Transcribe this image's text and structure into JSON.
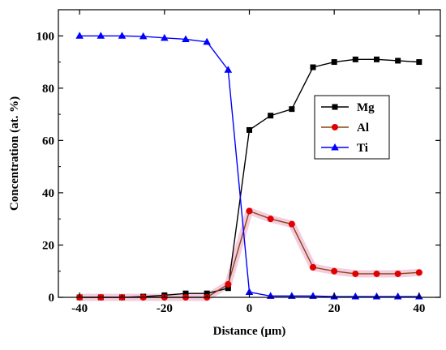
{
  "chart_data": {
    "type": "line",
    "xlabel": "Distance (μm)",
    "ylabel": "Concentration (at. %)",
    "xlim": [
      -45,
      45
    ],
    "ylim": [
      0,
      110
    ],
    "xticks": [
      -40,
      -20,
      0,
      20,
      40
    ],
    "yticks": [
      0,
      20,
      40,
      60,
      80,
      100
    ],
    "grid": false,
    "legend_position": "right-center",
    "series": [
      {
        "name": "Mg",
        "color": "#000000",
        "marker": "square",
        "x": [
          -40,
          -35,
          -30,
          -25,
          -20,
          -15,
          -10,
          -5,
          0,
          5,
          10,
          15,
          20,
          25,
          30,
          35,
          40
        ],
        "y": [
          0,
          0,
          0,
          0.3,
          0.8,
          1.5,
          1.5,
          3.5,
          64,
          69.5,
          72,
          88,
          90,
          91,
          91,
          90.5,
          90
        ]
      },
      {
        "name": "Al",
        "color": "#e00000",
        "line_color": "#8b4513",
        "marker": "circle",
        "x": [
          -40,
          -35,
          -30,
          -25,
          -20,
          -15,
          -10,
          -5,
          0,
          5,
          10,
          15,
          20,
          25,
          30,
          35,
          40
        ],
        "y": [
          0,
          0,
          0,
          0,
          0,
          0,
          0,
          5,
          33,
          30,
          28,
          11.5,
          10,
          9,
          9,
          9,
          9.5
        ]
      },
      {
        "name": "Ti",
        "color": "#0000ff",
        "marker": "triangle",
        "x": [
          -40,
          -35,
          -30,
          -25,
          -20,
          -15,
          -10,
          -5,
          0,
          5,
          10,
          15,
          20,
          25,
          30,
          35,
          40
        ],
        "y": [
          100,
          100,
          100,
          99.8,
          99.2,
          98.7,
          97.7,
          87,
          2,
          0.5,
          0.5,
          0.5,
          0.3,
          0.3,
          0.3,
          0.3,
          0.3
        ]
      }
    ]
  }
}
